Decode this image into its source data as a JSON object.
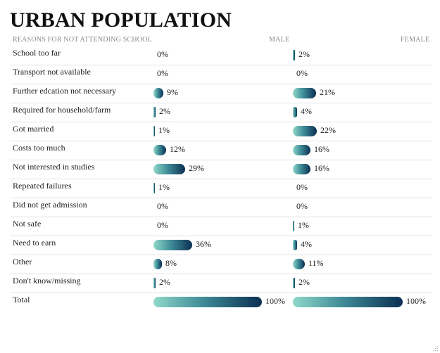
{
  "title": "URBAN POPULATION",
  "columns": {
    "reason": "REASONS FOR NOT ATTENDING SCHOOL",
    "male": "MALE",
    "female": "FEMALE"
  },
  "chart_data": {
    "type": "bar",
    "title": "URBAN POPULATION",
    "categories": [
      "School too far",
      "Transport not available",
      "Further edcation not necessary",
      "Required for household/farm",
      "Got married",
      "Costs too much",
      "Not interested in studies",
      "Repeated failures",
      "Did not get admission",
      "Not safe",
      "Need to earn",
      "Other",
      "Don't know/missing",
      "Total"
    ],
    "series": [
      {
        "name": "MALE",
        "values": [
          0,
          0,
          9,
          2,
          1,
          12,
          29,
          1,
          0,
          0,
          36,
          8,
          2,
          100
        ]
      },
      {
        "name": "FEMALE",
        "values": [
          2,
          0,
          21,
          4,
          22,
          16,
          16,
          0,
          0,
          1,
          4,
          11,
          2,
          100
        ]
      }
    ],
    "unit": "%",
    "ylim": [
      0,
      100
    ],
    "orientation": "horizontal",
    "grid": false,
    "colors": [
      "#8fd8c9",
      "#3f8c98",
      "#0b2f52"
    ]
  }
}
